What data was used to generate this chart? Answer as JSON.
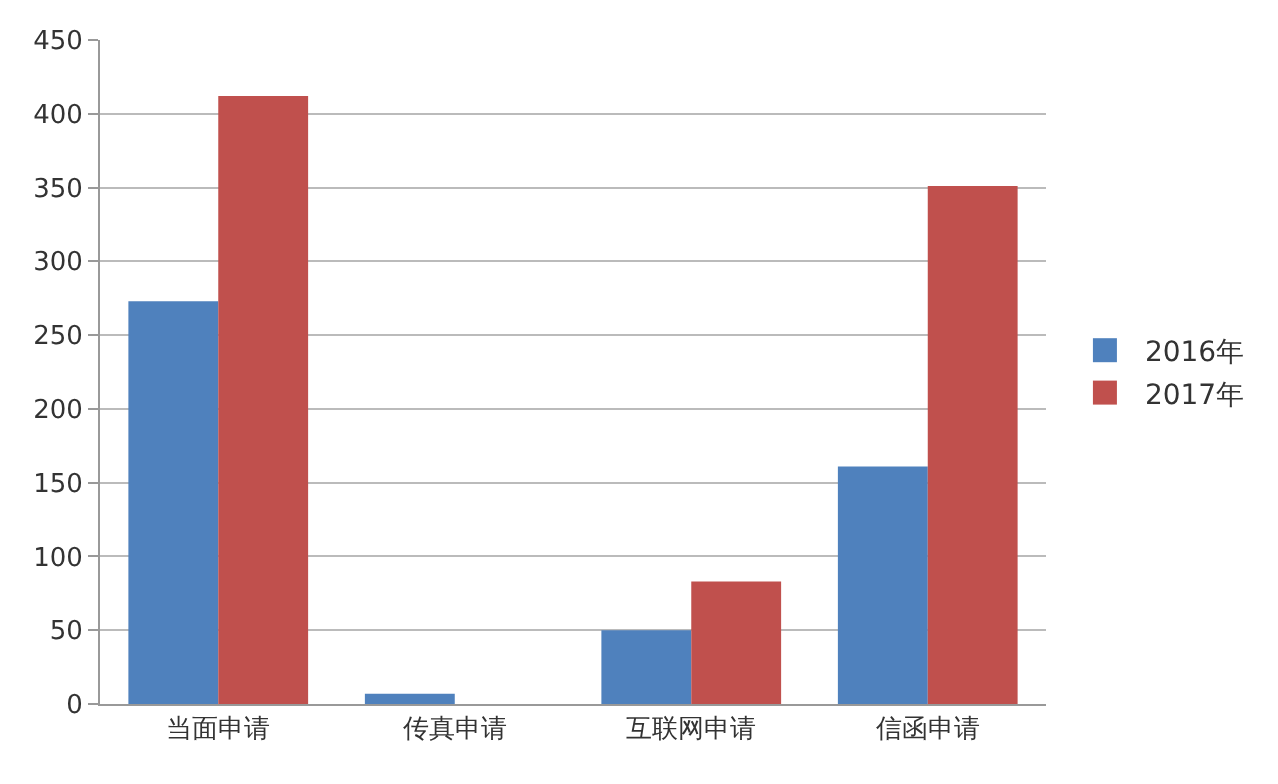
{
  "chart_data": {
    "type": "bar",
    "categories": [
      "当面申请",
      "传真申请",
      "互联网申请",
      "信函申请"
    ],
    "series": [
      {
        "name": "2016年",
        "color": "#4f81bd",
        "values": [
          273,
          7,
          50,
          161
        ]
      },
      {
        "name": "2017年",
        "color": "#c0504d",
        "values": [
          412,
          0,
          83,
          351
        ]
      }
    ],
    "ylim": [
      0,
      450
    ],
    "yticks": [
      0,
      50,
      100,
      150,
      200,
      250,
      300,
      350,
      400,
      450
    ],
    "grid": "y",
    "legend": "right"
  }
}
